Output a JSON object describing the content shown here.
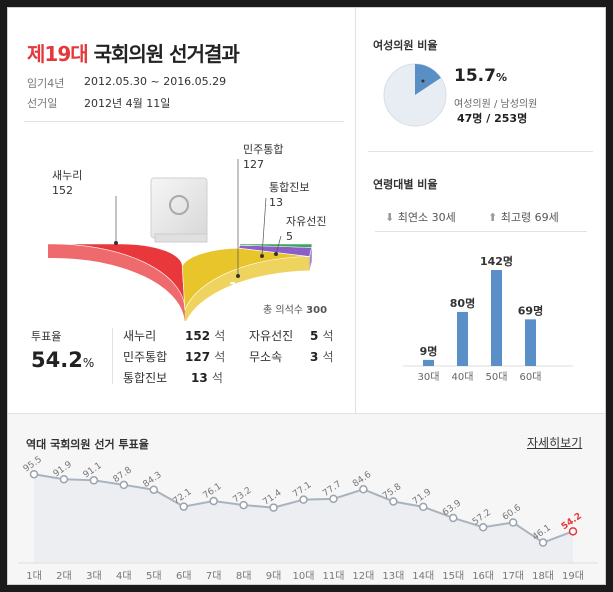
{
  "header": {
    "title_highlight": "제19대",
    "title_rest": "국회의원 선거결과",
    "term_label": "임기4년",
    "term_value": "2012.05.30 ~ 2016.05.29",
    "date_label": "선거일",
    "date_value": "2012년 4월 11일"
  },
  "seats_chart": {
    "total_label": "총 의석수",
    "total_value": "300",
    "parties": [
      {
        "name": "새누리",
        "seats": "152",
        "color": "#e8383c"
      },
      {
        "name": "민주통합",
        "seats": "127",
        "color": "#e8c52a"
      },
      {
        "name": "통합진보",
        "seats": "13",
        "color": "#8b5fc7"
      },
      {
        "name": "자유선진",
        "seats": "5",
        "color": "#3aa65a"
      }
    ],
    "inner_labels": [
      "152",
      "127"
    ]
  },
  "turnout": {
    "label": "투표율",
    "value": "54.2",
    "unit": "%"
  },
  "seat_table": [
    {
      "name": "새누리",
      "value": "152",
      "unit": "석"
    },
    {
      "name": "민주통합",
      "value": "127",
      "unit": "석"
    },
    {
      "name": "통합진보",
      "value": "13",
      "unit": "석"
    },
    {
      "name": "자유선진",
      "value": "5",
      "unit": "석"
    },
    {
      "name": "무소속",
      "value": "3",
      "unit": "석"
    }
  ],
  "women": {
    "title": "여성의원 비율",
    "percent": "15.7",
    "percent_unit": "%",
    "fraction": 0.157,
    "caption": "여성의원 / 남성의원",
    "counts": "47명 / 253명",
    "colors": {
      "women": "#5a8fc6",
      "men": "#e8edf3"
    }
  },
  "age": {
    "title": "연령대별 비율",
    "youngest": "최연소 30세",
    "oldest": "최고령 69세",
    "bar_color": "#5b8fc7"
  },
  "history": {
    "title": "역대 국회의원 선거 투표율",
    "more_link": "자세히보기",
    "line_color": "#a9b3bf",
    "highlight_color": "#e4393c"
  },
  "chart_data": [
    {
      "type": "bar",
      "categories": [
        "30대",
        "40대",
        "50대",
        "60대"
      ],
      "values": [
        9,
        80,
        142,
        69
      ],
      "value_labels": [
        "9명",
        "80명",
        "142명",
        "69명"
      ],
      "ylim": [
        0,
        142
      ]
    },
    {
      "type": "line",
      "categories": [
        "1대",
        "2대",
        "3대",
        "4대",
        "5대",
        "6대",
        "7대",
        "8대",
        "9대",
        "10대",
        "11대",
        "12대",
        "13대",
        "14대",
        "15대",
        "16대",
        "17대",
        "18대",
        "19대"
      ],
      "values": [
        95.5,
        91.9,
        91.1,
        87.8,
        84.3,
        72.1,
        76.1,
        73.2,
        71.4,
        77.1,
        77.7,
        84.6,
        75.8,
        71.9,
        63.9,
        57.2,
        60.6,
        46.1,
        54.2
      ],
      "value_labels": [
        "95.5",
        "91.9",
        "91.1",
        "87.8",
        "84.3",
        "72.1",
        "76.1",
        "73.2",
        "71.4",
        "77.1",
        "77.7",
        "84.6",
        "75.8",
        "71.9",
        "63.9",
        "57.2",
        "60.6",
        "46.1",
        "54.2"
      ]
    }
  ]
}
